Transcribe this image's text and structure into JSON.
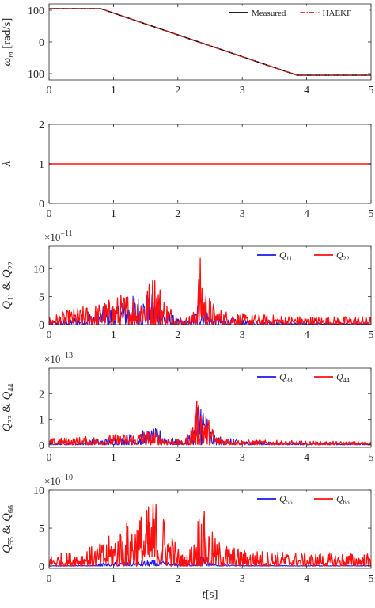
{
  "colors": {
    "measured": "#000000",
    "haekf": "#d62020",
    "blue": "#1a1aee",
    "red": "#ff1010",
    "axes": "#262626"
  },
  "chart_data": [
    {
      "type": "line",
      "ylabel": "ω_m [rad/s]",
      "ylabel_main": "ω",
      "ylabel_sub": "m",
      "ylabel_unit": "[rad/s]",
      "xlim": [
        0,
        5
      ],
      "ylim": [
        -120,
        120
      ],
      "xticks": [
        0,
        1,
        2,
        3,
        4,
        5
      ],
      "xtick_labels": [
        "0",
        "1",
        "2",
        "3",
        "4",
        "5"
      ],
      "yticks": [
        -100,
        0,
        100
      ],
      "ytick_labels": [
        "−100",
        "0",
        "100"
      ],
      "legend_position": "top-right",
      "series": [
        {
          "name": "Measured",
          "style": "solid",
          "x": [
            0,
            0.8,
            3.85,
            5
          ],
          "y": [
            105,
            105,
            -105,
            -105
          ]
        },
        {
          "name": "HAEKF",
          "style": "dash-dot",
          "x": [
            0,
            0.8,
            3.85,
            5
          ],
          "y": [
            105,
            105,
            -105,
            -105
          ]
        }
      ]
    },
    {
      "type": "line",
      "ylabel": "λ",
      "xlim": [
        0,
        5
      ],
      "ylim": [
        0,
        2
      ],
      "xticks": [
        0,
        1,
        2,
        3,
        4,
        5
      ],
      "xtick_labels": [
        "0",
        "1",
        "2",
        "3",
        "4",
        "5"
      ],
      "yticks": [
        0,
        1,
        2
      ],
      "ytick_labels": [
        "0",
        "1",
        "2"
      ],
      "series": [
        {
          "x": [
            0,
            5
          ],
          "y": [
            1,
            1
          ]
        }
      ]
    },
    {
      "type": "line",
      "ylabel": "Q11 & Q22",
      "ylabel_parts": [
        "Q",
        "11",
        " & Q",
        "22"
      ],
      "exponent_label": "×10",
      "exponent_power": "−11",
      "xlim": [
        0,
        5
      ],
      "ylim": [
        0,
        14
      ],
      "xticks": [
        0,
        1,
        2,
        3,
        4,
        5
      ],
      "xtick_labels": [
        "0",
        "1",
        "2",
        "3",
        "4",
        "5"
      ],
      "yticks": [
        0,
        5,
        10
      ],
      "ytick_labels": [
        "0",
        "5",
        "10"
      ],
      "legend_position": "top-right",
      "series": [
        {
          "name": "Q11",
          "name_main": "Q",
          "name_sub": "11",
          "color": "blue",
          "envelope": [
            [
              0,
              0.5
            ],
            [
              0.4,
              1.5
            ],
            [
              0.8,
              3
            ],
            [
              1.2,
              5
            ],
            [
              1.5,
              6
            ],
            [
              1.65,
              5.5
            ],
            [
              1.8,
              3
            ],
            [
              2.0,
              1
            ],
            [
              2.2,
              0.6
            ],
            [
              2.3,
              4
            ],
            [
              2.35,
              8
            ],
            [
              2.42,
              4
            ],
            [
              2.55,
              1.5
            ],
            [
              3.0,
              0.8
            ],
            [
              4.0,
              0.4
            ],
            [
              5,
              0.3
            ]
          ]
        },
        {
          "name": "Q22",
          "name_main": "Q",
          "name_sub": "22",
          "color": "red",
          "envelope": [
            [
              0,
              1.5
            ],
            [
              0.4,
              3
            ],
            [
              0.8,
              4
            ],
            [
              1.2,
              6
            ],
            [
              1.5,
              7
            ],
            [
              1.65,
              10
            ],
            [
              1.8,
              5
            ],
            [
              1.95,
              2.5
            ],
            [
              2.1,
              1.0
            ],
            [
              2.25,
              2.5
            ],
            [
              2.35,
              12.5
            ],
            [
              2.45,
              6
            ],
            [
              2.6,
              3
            ],
            [
              3.0,
              2
            ],
            [
              4.0,
              1.5
            ],
            [
              5,
              1.5
            ]
          ]
        }
      ]
    },
    {
      "type": "line",
      "ylabel": "Q33 & Q44",
      "ylabel_parts": [
        "Q",
        "33",
        " & Q",
        "44"
      ],
      "exponent_label": "×10",
      "exponent_power": "−13",
      "xlim": [
        0,
        5
      ],
      "ylim": [
        -0.1,
        3.0
      ],
      "xticks": [
        0,
        1,
        2,
        3,
        4,
        5
      ],
      "xtick_labels": [
        "0",
        "1",
        "2",
        "3",
        "4",
        "5"
      ],
      "yticks": [
        0,
        1,
        2
      ],
      "ytick_labels": [
        "0",
        "1",
        "2"
      ],
      "legend_position": "top-right",
      "series": [
        {
          "name": "Q33",
          "name_main": "Q",
          "name_sub": "33",
          "color": "blue",
          "envelope": [
            [
              0,
              0.05
            ],
            [
              0.5,
              0.15
            ],
            [
              1.0,
              0.3
            ],
            [
              1.5,
              0.6
            ],
            [
              1.7,
              0.65
            ],
            [
              1.9,
              0.3
            ],
            [
              2.1,
              0.1
            ],
            [
              2.2,
              0.6
            ],
            [
              2.3,
              1.5
            ],
            [
              2.35,
              2.8
            ],
            [
              2.42,
              1.5
            ],
            [
              2.55,
              0.4
            ],
            [
              3.0,
              0.15
            ],
            [
              4.0,
              0.08
            ],
            [
              5,
              0.06
            ]
          ]
        },
        {
          "name": "Q44",
          "name_main": "Q",
          "name_sub": "44",
          "color": "red",
          "envelope": [
            [
              0,
              0.25
            ],
            [
              0.4,
              0.3
            ],
            [
              0.8,
              0.35
            ],
            [
              1.2,
              0.45
            ],
            [
              1.5,
              0.6
            ],
            [
              1.7,
              0.5
            ],
            [
              1.9,
              0.3
            ],
            [
              2.1,
              0.12
            ],
            [
              2.2,
              0.8
            ],
            [
              2.3,
              1.8
            ],
            [
              2.35,
              2.3
            ],
            [
              2.45,
              1.2
            ],
            [
              2.6,
              0.4
            ],
            [
              3.0,
              0.2
            ],
            [
              4.0,
              0.15
            ],
            [
              5,
              0.12
            ]
          ]
        }
      ]
    },
    {
      "type": "line",
      "ylabel": "Q55 & Q66",
      "ylabel_parts": [
        "Q",
        "55",
        " & Q",
        "66"
      ],
      "xlabel": "t[s]",
      "xlabel_main": "t",
      "xlabel_unit": "[s]",
      "exponent_label": "×10",
      "exponent_power": "−10",
      "xlim": [
        0,
        5
      ],
      "ylim": [
        -0.3,
        10
      ],
      "xticks": [
        0,
        1,
        2,
        3,
        4,
        5
      ],
      "xtick_labels": [
        "0",
        "1",
        "2",
        "3",
        "4",
        "5"
      ],
      "yticks": [
        0,
        5,
        10
      ],
      "ytick_labels": [
        "0",
        "5",
        "10"
      ],
      "legend_position": "top-right",
      "series": [
        {
          "name": "Q55",
          "name_main": "Q",
          "name_sub": "55",
          "color": "blue",
          "envelope": [
            [
              0,
              0.05
            ],
            [
              0.7,
              0.1
            ],
            [
              0.8,
              0.4
            ],
            [
              1.0,
              0.5
            ],
            [
              1.4,
              0.7
            ],
            [
              1.7,
              0.8
            ],
            [
              1.9,
              0.5
            ],
            [
              2.1,
              0.25
            ],
            [
              2.25,
              0.6
            ],
            [
              2.35,
              1.8
            ],
            [
              2.45,
              0.8
            ],
            [
              2.6,
              0.2
            ],
            [
              3.0,
              0.1
            ],
            [
              5,
              0.08
            ]
          ]
        },
        {
          "name": "Q66",
          "name_main": "Q",
          "name_sub": "66",
          "color": "red",
          "envelope": [
            [
              0,
              1.5
            ],
            [
              0.4,
              2.0
            ],
            [
              0.8,
              3.0
            ],
            [
              1.0,
              4.5
            ],
            [
              1.3,
              6.5
            ],
            [
              1.5,
              7.5
            ],
            [
              1.65,
              9.5
            ],
            [
              1.8,
              6.5
            ],
            [
              1.95,
              3.5
            ],
            [
              2.1,
              1.2
            ],
            [
              2.25,
              3.5
            ],
            [
              2.35,
              9.2
            ],
            [
              2.45,
              6
            ],
            [
              2.6,
              3.5
            ],
            [
              3.0,
              2.2
            ],
            [
              4.0,
              1.8
            ],
            [
              5,
              1.7
            ]
          ]
        }
      ]
    }
  ]
}
